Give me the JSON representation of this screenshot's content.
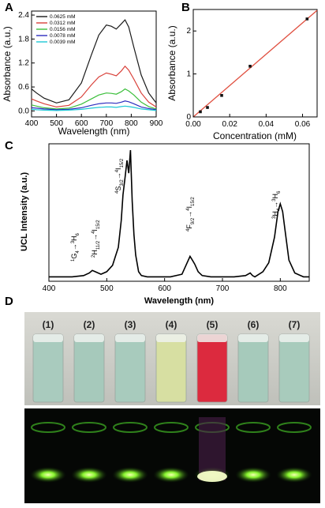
{
  "panels": [
    {
      "letter": "A"
    },
    {
      "letter": "B"
    },
    {
      "letter": "C"
    },
    {
      "letter": "D"
    }
  ],
  "chart_data": [
    {
      "panel": "A",
      "type": "line",
      "xlabel": "Wavelength (nm)",
      "ylabel": "Absorbance (a.u.)",
      "xlim": [
        400,
        900
      ],
      "ylim": [
        -0.15,
        2.5
      ],
      "xticks": [
        400,
        500,
        600,
        700,
        800,
        900
      ],
      "yticks": [
        0.0,
        0.6,
        1.2,
        1.8,
        2.4
      ],
      "ytick_labels": [
        "0.0",
        "0.6",
        "1.2",
        "1.8",
        "2.4"
      ],
      "legend_position": "top-left",
      "x": [
        400,
        420,
        450,
        500,
        550,
        600,
        640,
        670,
        700,
        720,
        740,
        760,
        775,
        790,
        810,
        840,
        870,
        900
      ],
      "series": [
        {
          "name": "0.0625 mM",
          "color": "#1a1a1a",
          "values": [
            0.55,
            0.45,
            0.32,
            0.2,
            0.28,
            0.7,
            1.4,
            1.9,
            2.15,
            2.12,
            2.05,
            2.18,
            2.28,
            2.1,
            1.6,
            0.9,
            0.45,
            0.2
          ]
        },
        {
          "name": "0.0312 mM",
          "color": "#d9413a",
          "values": [
            0.3,
            0.25,
            0.18,
            0.1,
            0.14,
            0.35,
            0.65,
            0.85,
            0.95,
            0.92,
            0.88,
            1.0,
            1.12,
            1.02,
            0.8,
            0.45,
            0.22,
            0.1
          ]
        },
        {
          "name": "0.0156 mM",
          "color": "#3cbf3c",
          "values": [
            0.15,
            0.12,
            0.08,
            0.05,
            0.07,
            0.17,
            0.3,
            0.4,
            0.45,
            0.44,
            0.42,
            0.48,
            0.55,
            0.5,
            0.4,
            0.22,
            0.11,
            0.05
          ]
        },
        {
          "name": "0.0078 mM",
          "color": "#2d2dbf",
          "values": [
            0.08,
            0.07,
            0.05,
            0.03,
            0.04,
            0.08,
            0.14,
            0.18,
            0.2,
            0.2,
            0.19,
            0.22,
            0.25,
            0.23,
            0.18,
            0.1,
            0.06,
            0.03
          ]
        },
        {
          "name": "0.0039 mM",
          "color": "#1fc8d6",
          "values": [
            0.04,
            0.03,
            0.02,
            0.01,
            0.02,
            0.04,
            0.07,
            0.09,
            0.1,
            0.1,
            0.09,
            0.11,
            0.12,
            0.11,
            0.09,
            0.05,
            0.03,
            0.01
          ]
        }
      ]
    },
    {
      "panel": "B",
      "type": "scatter",
      "xlabel": "Concentration (mM)",
      "ylabel": "Absorbance (a.u.)",
      "xlim": [
        0.0,
        0.068
      ],
      "ylim": [
        0.0,
        2.5
      ],
      "xticks": [
        0.0,
        0.02,
        0.04,
        0.06
      ],
      "xtick_labels": [
        "0.00",
        "0.02",
        "0.04",
        "0.06"
      ],
      "yticks": [
        0,
        1,
        2
      ],
      "x": [
        0.0039,
        0.0078,
        0.0156,
        0.0312,
        0.0625
      ],
      "values": [
        0.12,
        0.22,
        0.5,
        1.18,
        2.28
      ],
      "fit_line": {
        "x": [
          0.0,
          0.068
        ],
        "y": [
          0.0,
          2.48
        ],
        "color": "#e05040"
      }
    },
    {
      "panel": "C",
      "type": "line",
      "xlabel": "Wavelength (nm)",
      "ylabel": "UCL Intensity (a.u.)",
      "xlim": [
        400,
        850
      ],
      "ylim": [
        0,
        100
      ],
      "xticks": [
        400,
        500,
        600,
        700,
        800
      ],
      "x": [
        400,
        420,
        440,
        460,
        470,
        475,
        480,
        490,
        500,
        510,
        515,
        520,
        525,
        528,
        532,
        535,
        538,
        541,
        544,
        547,
        550,
        555,
        560,
        570,
        590,
        610,
        630,
        638,
        644,
        648,
        652,
        658,
        665,
        680,
        700,
        720,
        740,
        748,
        752,
        756,
        770,
        780,
        790,
        796,
        800,
        804,
        808,
        815,
        825,
        840,
        850
      ],
      "values": [
        1,
        1,
        1,
        2,
        4,
        6,
        5,
        3,
        5,
        10,
        17,
        24,
        45,
        65,
        80,
        92,
        82,
        100,
        60,
        34,
        18,
        5,
        2,
        1,
        1,
        1,
        3,
        11,
        17,
        14,
        11,
        5,
        2,
        1,
        1,
        1,
        2,
        4,
        2,
        1,
        5,
        12,
        32,
        52,
        58,
        52,
        38,
        14,
        4,
        1,
        1
      ]
    }
  ],
  "annotations": [
    {
      "id": "g4",
      "upper": "1",
      "main": "G",
      "sub": "4",
      "arrow": "→",
      "upper2": "3",
      "main2": "H",
      "sub2": "6"
    },
    {
      "id": "h11",
      "upper": "2",
      "main": "H",
      "sub": "11/2",
      "arrow": "→",
      "upper2": "4",
      "main2": "I",
      "sub2": "15/2"
    },
    {
      "id": "s32",
      "upper": "4",
      "main": "S",
      "sub": "3/2",
      "arrow": "→",
      "upper2": "4",
      "main2": "I",
      "sub2": "15/2"
    },
    {
      "id": "f92",
      "upper": "4",
      "main": "F",
      "sub": "9/2",
      "arrow": "→",
      "upper2": "4",
      "main2": "I",
      "sub2": "15/2"
    },
    {
      "id": "h4",
      "upper": "3",
      "main": "H",
      "sub": "4",
      "arrow": "→",
      "upper2": "3",
      "main2": "H",
      "sub2": "6"
    }
  ],
  "vials": [
    {
      "label": "(1)",
      "top_color": "#a9cbbe",
      "glow": "#7dff3a"
    },
    {
      "label": "(2)",
      "top_color": "#a6c9bb",
      "glow": "#7dff3a"
    },
    {
      "label": "(3)",
      "top_color": "#a8cbbd",
      "glow": "#7dff3a"
    },
    {
      "label": "(4)",
      "top_color": "#d7dfa2",
      "glow": "#8cff3a"
    },
    {
      "label": "(5)",
      "top_color": "#dc2a3e",
      "glow": "#d9ff9a"
    },
    {
      "label": "(6)",
      "top_color": "#a6cabb",
      "glow": "#7dff3a"
    },
    {
      "label": "(7)",
      "top_color": "#a8cbbc",
      "glow": "#7dff3a"
    }
  ]
}
